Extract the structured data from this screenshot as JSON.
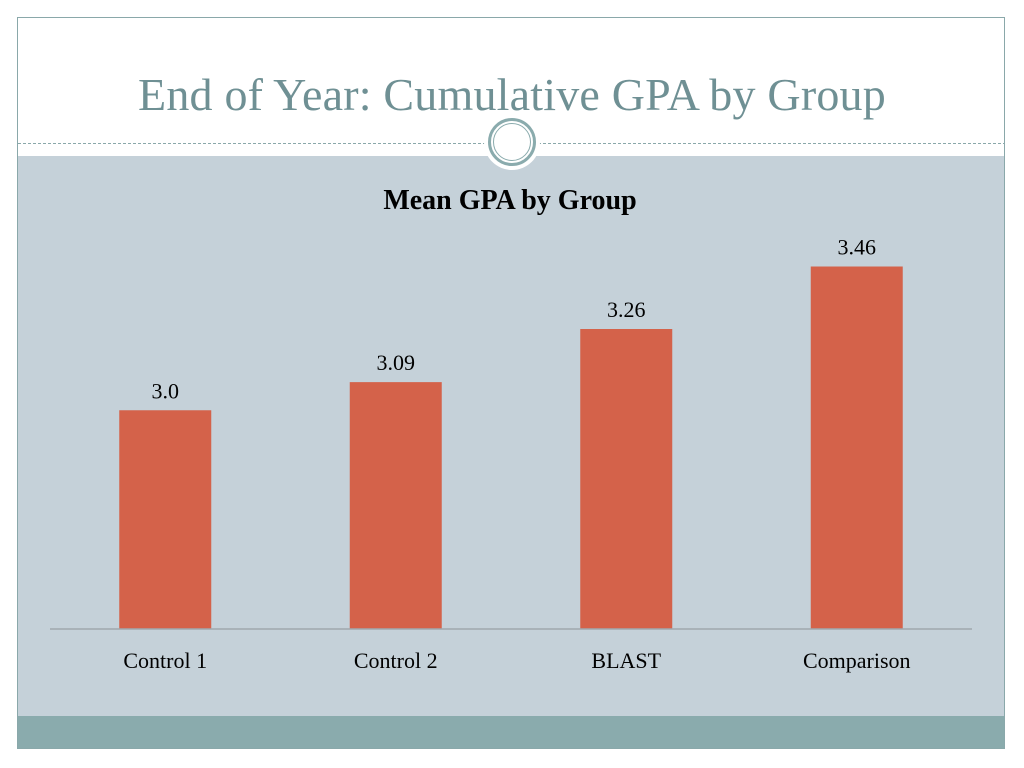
{
  "slide": {
    "title": "End of Year: Cumulative GPA by Group"
  },
  "colors": {
    "title": "#6f9094",
    "panel": "#c5d1d9",
    "footer": "#8aabad",
    "bar": "#d4624a",
    "axis": "#a0a8ae"
  },
  "chart_data": {
    "type": "bar",
    "title": "Mean GPA by Group",
    "categories": [
      "Control 1",
      "Control 2",
      "BLAST",
      "Comparison"
    ],
    "values": [
      3.0,
      3.09,
      3.26,
      3.46
    ],
    "data_labels": [
      "3.0",
      "3.09",
      "3.26",
      "3.46"
    ],
    "xlabel": "",
    "ylabel": "",
    "ylim": [
      2.3,
      3.5
    ],
    "grid": false,
    "legend": "none"
  }
}
